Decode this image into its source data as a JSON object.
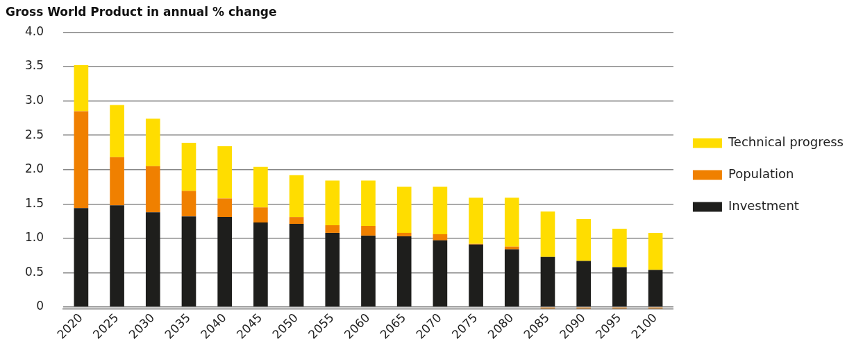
{
  "chart_data": {
    "type": "bar",
    "title": "Gross World Product in annual % change",
    "categories": [
      "2020",
      "2025",
      "2030",
      "2035",
      "2040",
      "2045",
      "2050",
      "2055",
      "2060",
      "2065",
      "2070",
      "2075",
      "2080",
      "2085",
      "2090",
      "2095",
      "2100"
    ],
    "series": [
      {
        "name": "Investment",
        "color": "#1e1e1c",
        "values": [
          1.44,
          1.48,
          1.38,
          1.32,
          1.31,
          1.23,
          1.21,
          1.08,
          1.04,
          1.03,
          0.97,
          0.91,
          0.84,
          0.73,
          0.67,
          0.58,
          0.54
        ]
      },
      {
        "name": "Population",
        "color": "#f08000",
        "values": [
          1.41,
          0.7,
          0.67,
          0.37,
          0.27,
          0.22,
          0.1,
          0.11,
          0.14,
          0.05,
          0.09,
          0.01,
          0.04,
          -0.02,
          -0.02,
          -0.02,
          -0.02
        ]
      },
      {
        "name": "Technical progress",
        "color": "#ffdd00",
        "values": [
          0.67,
          0.76,
          0.69,
          0.7,
          0.76,
          0.59,
          0.61,
          0.65,
          0.66,
          0.67,
          0.69,
          0.67,
          0.71,
          0.66,
          0.61,
          0.56,
          0.54
        ]
      }
    ],
    "stacked": true,
    "ylim": [
      -0.03,
      4
    ],
    "yticks": [
      0,
      {
        "value": 0.5,
        "label": "0.5"
      },
      {
        "value": 1,
        "label": "1.0"
      },
      {
        "value": 1.5,
        "label": "1.5"
      },
      {
        "value": 2,
        "label": "2.0"
      },
      {
        "value": 2.5,
        "label": "2.5"
      },
      {
        "value": 3,
        "label": "3.0"
      },
      {
        "value": 3.5,
        "label": "3.5"
      },
      {
        "value": 4,
        "label": "4.0"
      }
    ],
    "grid": "y",
    "legend": "right"
  }
}
